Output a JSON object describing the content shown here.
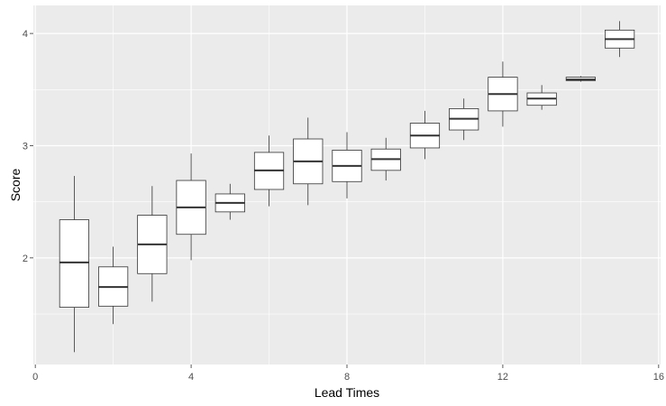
{
  "chart_data": {
    "type": "boxplot",
    "xlabel": "Lead Times",
    "ylabel": "Score",
    "xlim": [
      -0.05,
      16.05
    ],
    "ylim": [
      1.05,
      4.25
    ],
    "x_ticks": [
      0,
      4,
      8,
      12,
      16
    ],
    "x_minor_ticks": [
      2,
      6,
      10,
      14
    ],
    "y_ticks": [
      2,
      3,
      4
    ],
    "y_minor_ticks": [
      1.5,
      2.5,
      3.5
    ],
    "grid": true,
    "box_width": 0.75,
    "colors": {
      "panel": "#ebebeb",
      "grid": "#ffffff",
      "box_fill": "#ffffff",
      "box_stroke": "#333333",
      "tick_text": "#4d4d4d"
    },
    "boxes": [
      {
        "x": 1,
        "min": 1.16,
        "q1": 1.56,
        "median": 1.96,
        "q3": 2.34,
        "max": 2.73
      },
      {
        "x": 2,
        "min": 1.41,
        "q1": 1.57,
        "median": 1.74,
        "q3": 1.92,
        "max": 2.1
      },
      {
        "x": 3,
        "min": 1.61,
        "q1": 1.86,
        "median": 2.12,
        "q3": 2.38,
        "max": 2.64
      },
      {
        "x": 4,
        "min": 1.98,
        "q1": 2.21,
        "median": 2.45,
        "q3": 2.69,
        "max": 2.93
      },
      {
        "x": 5,
        "min": 2.34,
        "q1": 2.41,
        "median": 2.49,
        "q3": 2.57,
        "max": 2.66
      },
      {
        "x": 6,
        "min": 2.46,
        "q1": 2.61,
        "median": 2.78,
        "q3": 2.94,
        "max": 3.09
      },
      {
        "x": 7,
        "min": 2.47,
        "q1": 2.66,
        "median": 2.86,
        "q3": 3.06,
        "max": 3.25
      },
      {
        "x": 8,
        "min": 2.53,
        "q1": 2.68,
        "median": 2.82,
        "q3": 2.96,
        "max": 3.12
      },
      {
        "x": 9,
        "min": 2.69,
        "q1": 2.78,
        "median": 2.88,
        "q3": 2.97,
        "max": 3.07
      },
      {
        "x": 10,
        "min": 2.88,
        "q1": 2.98,
        "median": 3.09,
        "q3": 3.2,
        "max": 3.31
      },
      {
        "x": 11,
        "min": 3.05,
        "q1": 3.14,
        "median": 3.24,
        "q3": 3.33,
        "max": 3.42
      },
      {
        "x": 12,
        "min": 3.17,
        "q1": 3.31,
        "median": 3.46,
        "q3": 3.61,
        "max": 3.75
      },
      {
        "x": 13,
        "min": 3.32,
        "q1": 3.36,
        "median": 3.42,
        "q3": 3.47,
        "max": 3.54
      },
      {
        "x": 14,
        "min": 3.57,
        "q1": 3.58,
        "median": 3.59,
        "q3": 3.61,
        "max": 3.62
      },
      {
        "x": 15,
        "min": 3.79,
        "q1": 3.87,
        "median": 3.95,
        "q3": 4.03,
        "max": 4.11
      }
    ]
  }
}
